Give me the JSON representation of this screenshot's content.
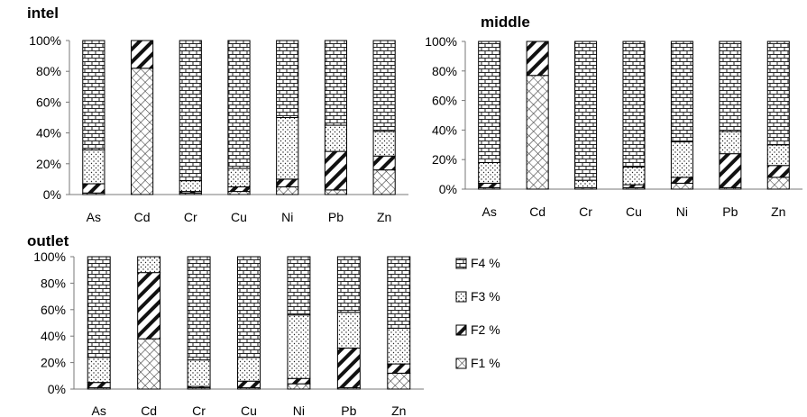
{
  "legend": {
    "items": [
      {
        "label": "F4 %",
        "pattern": "brick"
      },
      {
        "label": "F3 %",
        "pattern": "dots"
      },
      {
        "label": "F2 %",
        "pattern": "thick-diagonal"
      },
      {
        "label": "F1 %",
        "pattern": "light-diagonal"
      }
    ]
  },
  "chart_data": [
    {
      "type": "bar",
      "stacked": true,
      "title": "intel",
      "categories": [
        "As",
        "Cd",
        "Cr",
        "Cu",
        "Ni",
        "Pb",
        "Zn"
      ],
      "ylim": [
        0,
        100
      ],
      "yticks": [
        "0%",
        "20%",
        "40%",
        "60%",
        "80%",
        "100%"
      ],
      "series": [
        {
          "name": "F1 %",
          "values": [
            1,
            82,
            1,
            2,
            5,
            3,
            16
          ]
        },
        {
          "name": "F2 %",
          "values": [
            6,
            18,
            1,
            3,
            5,
            25,
            9
          ]
        },
        {
          "name": "F3 %",
          "values": [
            22,
            0,
            7,
            12,
            40,
            17,
            16
          ]
        },
        {
          "name": "F4 %",
          "values": [
            71,
            0,
            91,
            83,
            50,
            55,
            59
          ]
        }
      ]
    },
    {
      "type": "bar",
      "stacked": true,
      "title": "middle",
      "categories": [
        "As",
        "Cd",
        "Cr",
        "Cu",
        "Ni",
        "Pb",
        "Zn"
      ],
      "ylim": [
        0,
        100
      ],
      "yticks": [
        "0%",
        "20%",
        "40%",
        "60%",
        "80%",
        "100%"
      ],
      "series": [
        {
          "name": "F1 %",
          "values": [
            1,
            77,
            1,
            1,
            4,
            1,
            8
          ]
        },
        {
          "name": "F2 %",
          "values": [
            3,
            23,
            0,
            2,
            4,
            23,
            8
          ]
        },
        {
          "name": "F3 %",
          "values": [
            14,
            0,
            5,
            12,
            24,
            15,
            14
          ]
        },
        {
          "name": "F4 %",
          "values": [
            82,
            0,
            94,
            85,
            68,
            61,
            70
          ]
        }
      ]
    },
    {
      "type": "bar",
      "stacked": true,
      "title": "outlet",
      "categories": [
        "As",
        "Cd",
        "Cr",
        "Cu",
        "Ni",
        "Pb",
        "Zn"
      ],
      "ylim": [
        0,
        100
      ],
      "yticks": [
        "0%",
        "20%",
        "40%",
        "60%",
        "80%",
        "100%"
      ],
      "series": [
        {
          "name": "F1 %",
          "values": [
            1,
            38,
            1,
            1,
            4,
            1,
            12
          ]
        },
        {
          "name": "F2 %",
          "values": [
            4,
            50,
            1,
            5,
            4,
            30,
            7
          ]
        },
        {
          "name": "F3 %",
          "values": [
            19,
            12,
            20,
            18,
            48,
            27,
            27
          ]
        },
        {
          "name": "F4 %",
          "values": [
            76,
            0,
            78,
            76,
            44,
            42,
            54
          ]
        }
      ]
    }
  ]
}
